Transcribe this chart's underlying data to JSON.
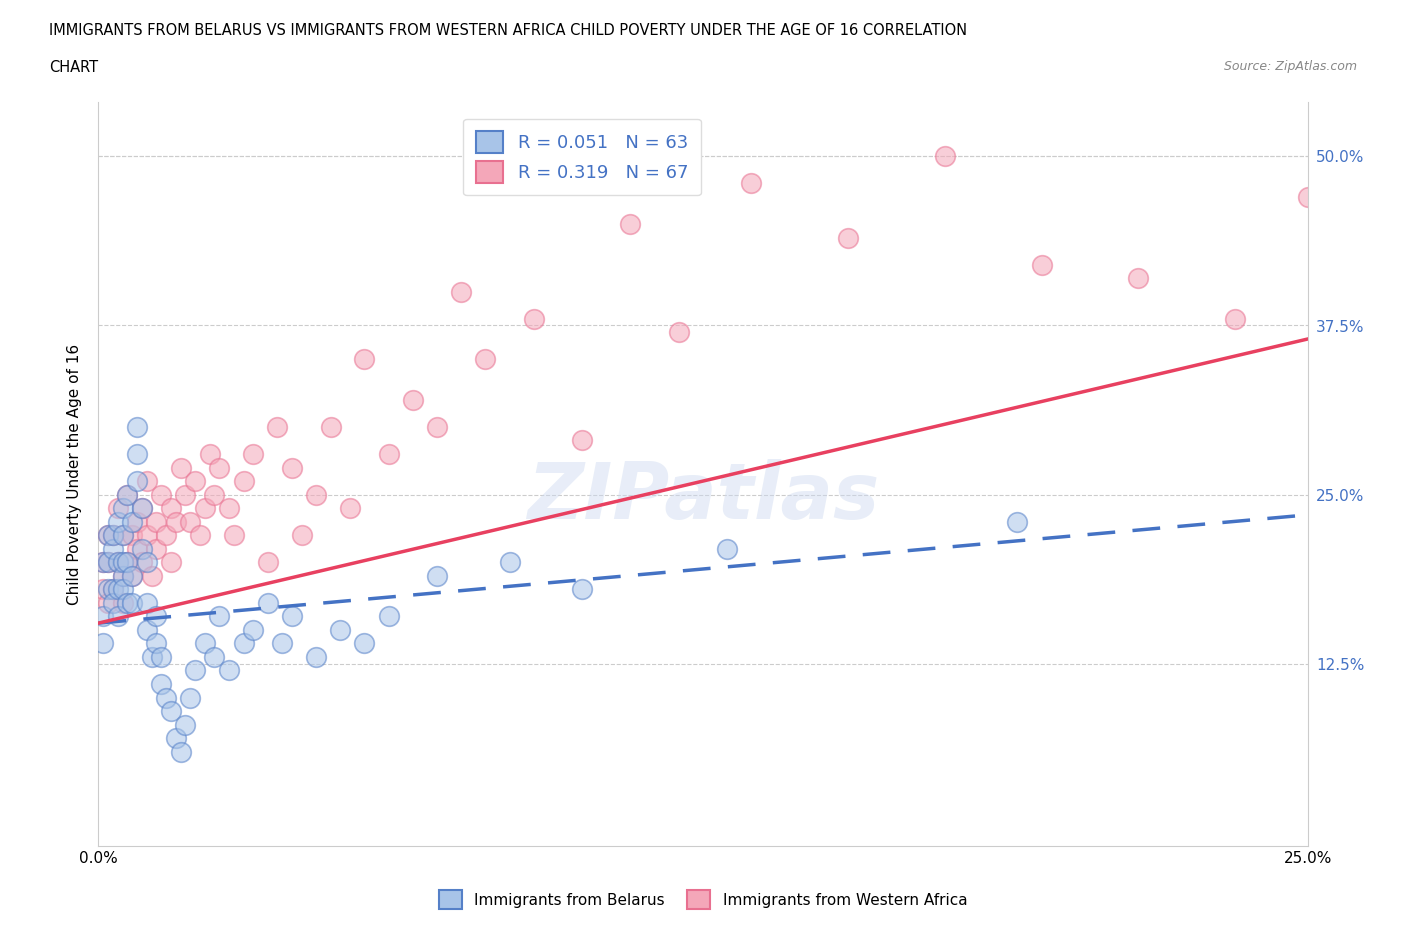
{
  "title_line1": "IMMIGRANTS FROM BELARUS VS IMMIGRANTS FROM WESTERN AFRICA CHILD POVERTY UNDER THE AGE OF 16 CORRELATION",
  "title_line2": "CHART",
  "source": "Source: ZipAtlas.com",
  "ylabel": "Child Poverty Under the Age of 16",
  "ytick_labels": [
    "12.5%",
    "25.0%",
    "37.5%",
    "50.0%"
  ],
  "xlim": [
    0.0,
    0.25
  ],
  "ylim": [
    -0.01,
    0.54
  ],
  "yticks": [
    0.125,
    0.25,
    0.375,
    0.5
  ],
  "xticks": [
    0.0,
    0.25
  ],
  "legend_r1": "R = 0.051   N = 63",
  "legend_r2": "R = 0.319   N = 67",
  "color_belarus": "#a8c4e8",
  "color_western_africa": "#f4a7b9",
  "color_line_belarus": "#4472c4",
  "color_line_western_africa": "#e84060",
  "watermark": "ZIPatlas",
  "label_belarus": "Immigrants from Belarus",
  "label_western_africa": "Immigrants from Western Africa",
  "belarus_x": [
    0.001,
    0.001,
    0.001,
    0.002,
    0.002,
    0.002,
    0.003,
    0.003,
    0.003,
    0.003,
    0.004,
    0.004,
    0.004,
    0.004,
    0.005,
    0.005,
    0.005,
    0.005,
    0.005,
    0.006,
    0.006,
    0.006,
    0.007,
    0.007,
    0.007,
    0.008,
    0.008,
    0.008,
    0.009,
    0.009,
    0.01,
    0.01,
    0.01,
    0.011,
    0.012,
    0.012,
    0.013,
    0.013,
    0.014,
    0.015,
    0.016,
    0.017,
    0.018,
    0.019,
    0.02,
    0.022,
    0.024,
    0.025,
    0.027,
    0.03,
    0.032,
    0.035,
    0.038,
    0.04,
    0.045,
    0.05,
    0.055,
    0.06,
    0.07,
    0.085,
    0.1,
    0.13,
    0.19
  ],
  "belarus_y": [
    0.16,
    0.14,
    0.2,
    0.18,
    0.2,
    0.22,
    0.21,
    0.22,
    0.18,
    0.17,
    0.2,
    0.23,
    0.16,
    0.18,
    0.19,
    0.2,
    0.18,
    0.22,
    0.24,
    0.25,
    0.2,
    0.17,
    0.19,
    0.23,
    0.17,
    0.28,
    0.3,
    0.26,
    0.24,
    0.21,
    0.15,
    0.17,
    0.2,
    0.13,
    0.14,
    0.16,
    0.11,
    0.13,
    0.1,
    0.09,
    0.07,
    0.06,
    0.08,
    0.1,
    0.12,
    0.14,
    0.13,
    0.16,
    0.12,
    0.14,
    0.15,
    0.17,
    0.14,
    0.16,
    0.13,
    0.15,
    0.14,
    0.16,
    0.19,
    0.2,
    0.18,
    0.21,
    0.23
  ],
  "western_africa_x": [
    0.001,
    0.001,
    0.002,
    0.002,
    0.002,
    0.003,
    0.003,
    0.004,
    0.004,
    0.005,
    0.005,
    0.005,
    0.006,
    0.006,
    0.007,
    0.007,
    0.008,
    0.008,
    0.009,
    0.009,
    0.01,
    0.01,
    0.011,
    0.012,
    0.012,
    0.013,
    0.014,
    0.015,
    0.015,
    0.016,
    0.017,
    0.018,
    0.019,
    0.02,
    0.021,
    0.022,
    0.023,
    0.024,
    0.025,
    0.027,
    0.028,
    0.03,
    0.032,
    0.035,
    0.037,
    0.04,
    0.042,
    0.045,
    0.048,
    0.052,
    0.055,
    0.06,
    0.065,
    0.07,
    0.075,
    0.08,
    0.09,
    0.1,
    0.11,
    0.12,
    0.135,
    0.155,
    0.175,
    0.195,
    0.215,
    0.235,
    0.25
  ],
  "western_africa_y": [
    0.2,
    0.18,
    0.17,
    0.2,
    0.22,
    0.18,
    0.22,
    0.2,
    0.24,
    0.19,
    0.22,
    0.17,
    0.2,
    0.25,
    0.22,
    0.19,
    0.23,
    0.21,
    0.24,
    0.2,
    0.22,
    0.26,
    0.19,
    0.23,
    0.21,
    0.25,
    0.22,
    0.2,
    0.24,
    0.23,
    0.27,
    0.25,
    0.23,
    0.26,
    0.22,
    0.24,
    0.28,
    0.25,
    0.27,
    0.24,
    0.22,
    0.26,
    0.28,
    0.2,
    0.3,
    0.27,
    0.22,
    0.25,
    0.3,
    0.24,
    0.35,
    0.28,
    0.32,
    0.3,
    0.4,
    0.35,
    0.38,
    0.29,
    0.45,
    0.37,
    0.48,
    0.44,
    0.5,
    0.42,
    0.41,
    0.38,
    0.47
  ],
  "belarus_line_x": [
    0.0,
    0.25
  ],
  "belarus_line_y": [
    0.155,
    0.235
  ],
  "wa_line_x": [
    0.0,
    0.25
  ],
  "wa_line_y": [
    0.155,
    0.365
  ]
}
